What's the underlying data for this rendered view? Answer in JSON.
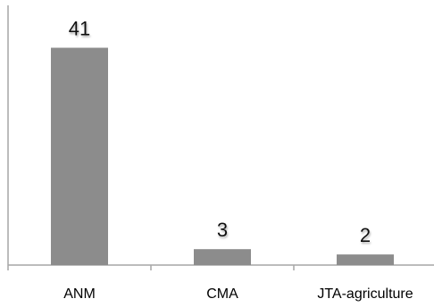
{
  "chart_data": {
    "type": "bar",
    "categories": [
      "ANM",
      "CMA",
      "JTA-agriculture"
    ],
    "values": [
      41,
      3,
      2
    ],
    "data_labels": [
      "41",
      "3",
      "2"
    ],
    "title": "",
    "xlabel": "",
    "ylabel": "",
    "ylim": [
      0,
      49
    ],
    "grid": false,
    "legend": "none",
    "colors": {
      "bar": "#8c8c8c",
      "axis": "#a6a6a6",
      "label_shadow": "#bdbdbd"
    }
  }
}
